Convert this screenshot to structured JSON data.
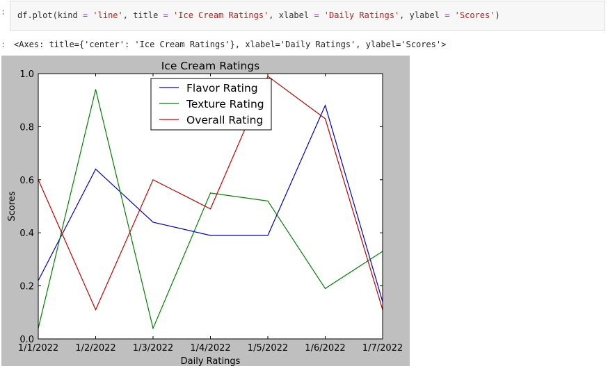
{
  "code_cell": {
    "prompt": ":",
    "tokens": {
      "t1": "df.plot(kind ",
      "t2": "=",
      "t3": " ",
      "t4": "'line'",
      "t5": ", title ",
      "t6": "=",
      "t7": " ",
      "t8": "'Ice Cream Ratings'",
      "t9": ", xlabel ",
      "t10": "=",
      "t11": " ",
      "t12": "'Daily Ratings'",
      "t13": ", ylabel ",
      "t14": "=",
      "t15": " ",
      "t16": "'Scores'",
      "t17": ")"
    }
  },
  "output_cell": {
    "prompt": ":",
    "text": "<Axes: title={'center': 'Ice Cream Ratings'}, xlabel='Daily Ratings', ylabel='Scores'>"
  },
  "chart_data": {
    "type": "line",
    "title": "Ice Cream Ratings",
    "xlabel": "Daily Ratings",
    "ylabel": "Scores",
    "categories": [
      "1/1/2022",
      "1/2/2022",
      "1/3/2022",
      "1/4/2022",
      "1/5/2022",
      "1/6/2022",
      "1/7/2022"
    ],
    "ylim": [
      0.0,
      1.0
    ],
    "yticks": [
      "0.0",
      "0.2",
      "0.4",
      "0.6",
      "0.8",
      "1.0"
    ],
    "grid": false,
    "legend_position": "top-center",
    "series": [
      {
        "name": "Flavor Rating",
        "color": "#0000bf",
        "values": [
          0.22,
          0.64,
          0.44,
          0.39,
          0.39,
          0.88,
          0.14
        ]
      },
      {
        "name": "Texture Rating",
        "color": "#007f00",
        "values": [
          0.04,
          0.94,
          0.04,
          0.55,
          0.52,
          0.19,
          0.33
        ]
      },
      {
        "name": "Overall Rating",
        "color": "#bf0000",
        "values": [
          0.6,
          0.11,
          0.6,
          0.49,
          0.99,
          0.83,
          0.11
        ]
      }
    ]
  }
}
